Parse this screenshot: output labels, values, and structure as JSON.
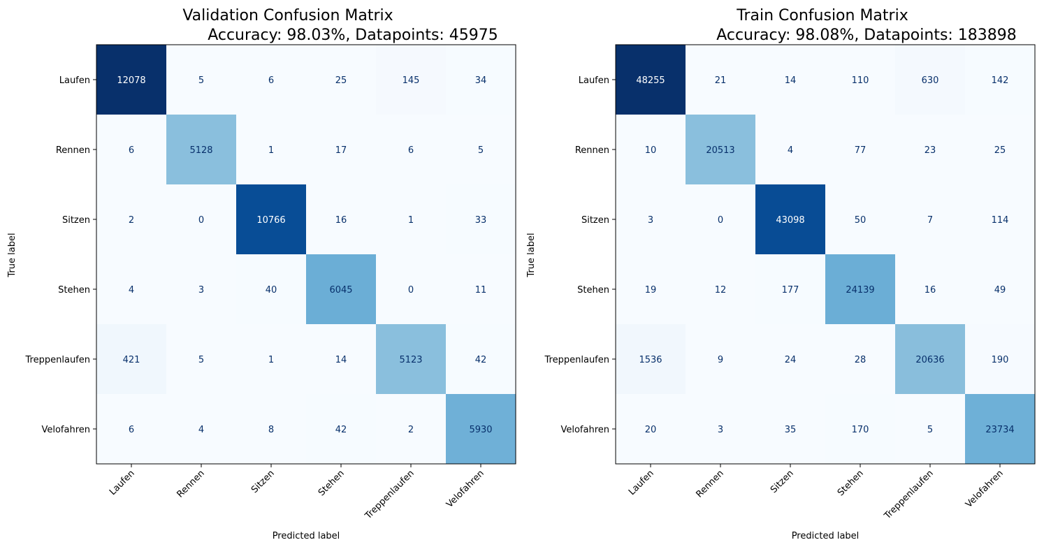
{
  "chart_data": [
    {
      "type": "heatmap",
      "title_line1": "Validation Confusion Matrix",
      "title_line2": "Accuracy: 98.03%, Datapoints: 45975",
      "xlabel": "Predicted label",
      "ylabel": "True label",
      "x_labels": [
        "Laufen",
        "Rennen",
        "Sitzen",
        "Stehen",
        "Treppenlaufen",
        "Velofahren"
      ],
      "y_labels": [
        "Laufen",
        "Rennen",
        "Sitzen",
        "Stehen",
        "Treppenlaufen",
        "Velofahren"
      ],
      "colormap": "Blues",
      "matrix": [
        [
          12078,
          5,
          6,
          25,
          145,
          34
        ],
        [
          6,
          5128,
          1,
          17,
          6,
          5
        ],
        [
          2,
          0,
          10766,
          16,
          1,
          33
        ],
        [
          4,
          3,
          40,
          6045,
          0,
          11
        ],
        [
          421,
          5,
          1,
          14,
          5123,
          42
        ],
        [
          6,
          4,
          8,
          42,
          2,
          5930
        ]
      ]
    },
    {
      "type": "heatmap",
      "title_line1": "Train Confusion Matrix",
      "title_line2": "Accuracy: 98.08%, Datapoints: 183898",
      "xlabel": "Predicted label",
      "ylabel": "True label",
      "x_labels": [
        "Laufen",
        "Rennen",
        "Sitzen",
        "Stehen",
        "Treppenlaufen",
        "Velofahren"
      ],
      "y_labels": [
        "Laufen",
        "Rennen",
        "Sitzen",
        "Stehen",
        "Treppenlaufen",
        "Velofahren"
      ],
      "colormap": "Blues",
      "matrix": [
        [
          48255,
          21,
          14,
          110,
          630,
          142
        ],
        [
          10,
          20513,
          4,
          77,
          23,
          25
        ],
        [
          3,
          0,
          43098,
          50,
          7,
          114
        ],
        [
          19,
          12,
          177,
          24139,
          16,
          49
        ],
        [
          1536,
          9,
          24,
          28,
          20636,
          190
        ],
        [
          20,
          3,
          35,
          170,
          5,
          23734
        ]
      ]
    }
  ]
}
